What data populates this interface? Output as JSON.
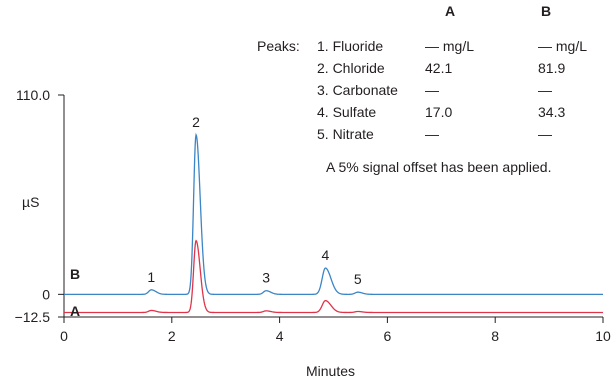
{
  "chart_data": {
    "type": "line",
    "xlabel": "Minutes",
    "ylabel": "µS",
    "xlim": [
      0,
      10
    ],
    "ylim": [
      -12.5,
      110.0
    ],
    "x_ticks": [
      "0",
      "2",
      "4",
      "6",
      "8",
      "10"
    ],
    "y_ticks": [
      "110.0",
      "0",
      "−12.5"
    ],
    "colors": {
      "A": "#e0344b",
      "B": "#3b86c6",
      "axis": "#231f20"
    },
    "peaks": [
      {
        "label": "1",
        "name": "1. Fluoride",
        "time": 1.62,
        "height": 2.5,
        "A": "—",
        "B": "—"
      },
      {
        "label": "2",
        "name": "2. Chloride",
        "time": 2.45,
        "height": 88.0,
        "A": "42.1",
        "B": "81.9"
      },
      {
        "label": "3",
        "name": "3. Carbonate",
        "time": 3.75,
        "height": 2.0,
        "A": "—",
        "B": "—"
      },
      {
        "label": "4",
        "name": "4. Sulfate",
        "time": 4.85,
        "height": 14.5,
        "A": "17.0",
        "B": "34.3"
      },
      {
        "label": "5",
        "name": "5. Nitrate",
        "time": 5.45,
        "height": 1.2,
        "A": "—",
        "B": "—"
      }
    ],
    "series": [
      {
        "name": "A",
        "baseline": -10.0,
        "scale": 0.45
      },
      {
        "name": "B",
        "baseline": 0.0,
        "scale": 1.0
      }
    ],
    "annotation": "A 5% signal offset has been applied."
  },
  "legend_table": {
    "peaks_label": "Peaks:",
    "col_a": "A",
    "col_b": "B",
    "rows": [
      {
        "name": "1. Fluoride",
        "a": "— mg/L",
        "b": "— mg/L"
      },
      {
        "name": "2. Chloride",
        "a": "42.1",
        "b": "81.9"
      },
      {
        "name": "3. Carbonate",
        "a": "—",
        "b": "—"
      },
      {
        "name": "4. Sulfate",
        "a": "17.0",
        "b": "34.3"
      },
      {
        "name": "5. Nitrate",
        "a": "—",
        "b": "—"
      }
    ]
  }
}
